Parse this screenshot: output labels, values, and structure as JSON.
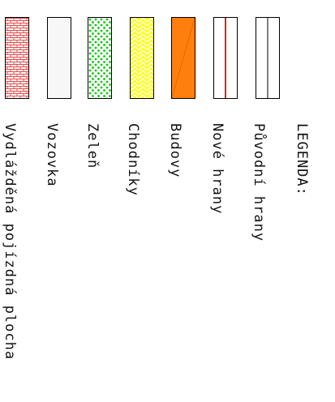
{
  "legend": {
    "title": "LEGENDA:",
    "items": [
      {
        "label": "Původní hrany",
        "color": "#555555"
      },
      {
        "label": "Nové hrany",
        "color": "#e0201a"
      },
      {
        "label": "Budovy",
        "color": "#ff7f0e"
      },
      {
        "label": "Chodníky",
        "color": "#ffff00"
      },
      {
        "label": "Zeleň",
        "color": "#00cc00"
      },
      {
        "label": "Vozovka",
        "color": "#f7f7f7"
      },
      {
        "label": "Vydlážděná pojízdná plocha",
        "color": "#e84a4a"
      }
    ]
  }
}
